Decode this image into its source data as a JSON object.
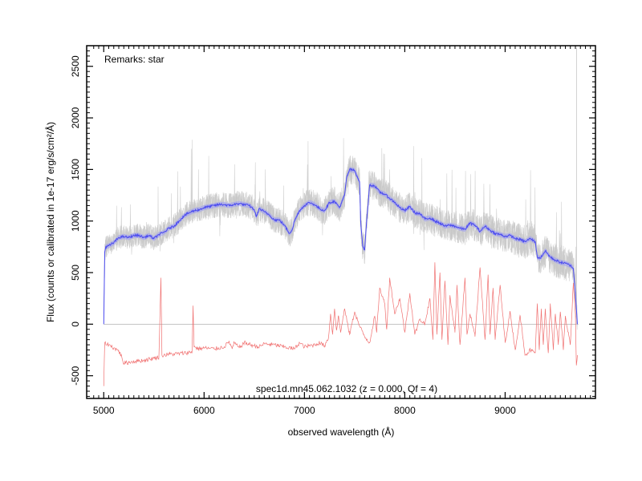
{
  "chart_data": {
    "type": "line",
    "title": "",
    "xlabel": "observed wavelength (Å)",
    "ylabel": "Flux (counts or calibrated in 1e-17 erg/s/cm²/Å)",
    "xlim": [
      4830,
      9900
    ],
    "ylim": [
      -720,
      2700
    ],
    "xticks": [
      5000,
      6000,
      7000,
      8000,
      9000
    ],
    "yticks": [
      -500,
      0,
      500,
      1000,
      1500,
      2000,
      2500
    ],
    "grid": false,
    "legend": "none",
    "annotations": {
      "remarks": "Remarks: star",
      "object_info": "spec1d.mn45.062.1032 (z = 0.000, Qf = 4)"
    },
    "colors": {
      "raw_flux": "#c8c8c8",
      "smoothed_flux": "#4b4bf0",
      "smoothed_band": "#9a9af5",
      "sky": "#f07070",
      "zero_line": "#b0b0b0"
    },
    "series": [
      {
        "role": "smoothed_flux",
        "x": [
          5000,
          5010,
          5020,
          5050,
          5100,
          5150,
          5200,
          5250,
          5300,
          5350,
          5400,
          5450,
          5500,
          5550,
          5600,
          5650,
          5700,
          5750,
          5800,
          5850,
          5900,
          5950,
          6000,
          6050,
          6100,
          6150,
          6200,
          6250,
          6300,
          6350,
          6400,
          6450,
          6500,
          6520,
          6550,
          6600,
          6650,
          6700,
          6750,
          6800,
          6850,
          6880,
          6900,
          6950,
          7000,
          7050,
          7100,
          7150,
          7200,
          7250,
          7300,
          7350,
          7400,
          7420,
          7450,
          7500,
          7550,
          7560,
          7580,
          7600,
          7620,
          7650,
          7700,
          7750,
          7800,
          7850,
          7900,
          7950,
          8000,
          8050,
          8100,
          8150,
          8200,
          8250,
          8300,
          8350,
          8400,
          8450,
          8500,
          8550,
          8600,
          8650,
          8700,
          8750,
          8800,
          8850,
          8900,
          8950,
          9000,
          9050,
          9100,
          9150,
          9200,
          9250,
          9300,
          9320,
          9350,
          9400,
          9450,
          9500,
          9550,
          9600,
          9650,
          9680,
          9700,
          9720
        ],
        "y": [
          0,
          700,
          750,
          760,
          790,
          840,
          850,
          840,
          860,
          860,
          840,
          860,
          830,
          870,
          890,
          930,
          950,
          1000,
          1050,
          1080,
          1100,
          1110,
          1130,
          1140,
          1150,
          1160,
          1160,
          1150,
          1160,
          1170,
          1160,
          1150,
          1110,
          1040,
          1120,
          1090,
          1060,
          1010,
          1010,
          960,
          880,
          920,
          1000,
          1100,
          1150,
          1180,
          1160,
          1120,
          1100,
          1180,
          1190,
          1130,
          1250,
          1420,
          1500,
          1490,
          1380,
          1000,
          760,
          720,
          1000,
          1350,
          1340,
          1280,
          1260,
          1220,
          1180,
          1130,
          1100,
          1140,
          1080,
          1070,
          1020,
          1030,
          1000,
          980,
          950,
          960,
          950,
          930,
          920,
          980,
          960,
          900,
          950,
          910,
          880,
          870,
          850,
          860,
          830,
          820,
          800,
          830,
          800,
          650,
          640,
          710,
          650,
          620,
          600,
          590,
          570,
          540,
          300,
          0
        ]
      },
      {
        "role": "sky",
        "x": [
          5000,
          5010,
          5050,
          5100,
          5150,
          5180,
          5200,
          5250,
          5300,
          5400,
          5500,
          5550,
          5570,
          5580,
          5600,
          5650,
          5700,
          5800,
          5880,
          5890,
          5900,
          5950,
          6000,
          6100,
          6200,
          6250,
          6280,
          6300,
          6350,
          6400,
          6500,
          6550,
          6600,
          6700,
          6800,
          6900,
          6950,
          7000,
          7100,
          7150,
          7200,
          7240,
          7260,
          7280,
          7300,
          7320,
          7340,
          7360,
          7400,
          7450,
          7500,
          7550,
          7600,
          7650,
          7700,
          7720,
          7750,
          7800,
          7820,
          7850,
          7900,
          7950,
          8000,
          8050,
          8100,
          8150,
          8200,
          8250,
          8280,
          8300,
          8320,
          8350,
          8370,
          8400,
          8430,
          8450,
          8500,
          8520,
          8550,
          8600,
          8620,
          8650,
          8700,
          8750,
          8800,
          8830,
          8850,
          8880,
          8900,
          8950,
          9000,
          9050,
          9100,
          9150,
          9200,
          9250,
          9300,
          9320,
          9340,
          9360,
          9380,
          9400,
          9430,
          9450,
          9480,
          9500,
          9530,
          9550,
          9580,
          9600,
          9650,
          9680,
          9700,
          9710,
          9720
        ],
        "y": [
          -600,
          -180,
          -200,
          -230,
          -260,
          -320,
          -380,
          -370,
          -360,
          -350,
          -330,
          -320,
          450,
          -300,
          -300,
          -290,
          -290,
          -280,
          -270,
          180,
          -220,
          -240,
          -230,
          -240,
          -220,
          -170,
          -240,
          -180,
          -230,
          -180,
          -210,
          -220,
          -190,
          -200,
          -220,
          -240,
          -180,
          -220,
          -200,
          -180,
          -210,
          -130,
          100,
          -100,
          150,
          -60,
          80,
          -80,
          150,
          -100,
          120,
          -20,
          -120,
          -180,
          80,
          -80,
          350,
          200,
          -50,
          450,
          100,
          250,
          -80,
          300,
          -100,
          50,
          0,
          250,
          -150,
          600,
          -100,
          500,
          -150,
          420,
          -200,
          280,
          -80,
          380,
          -200,
          450,
          -100,
          100,
          -120,
          550,
          -150,
          480,
          -100,
          350,
          -150,
          380,
          -180,
          120,
          -250,
          80,
          -300,
          -250,
          -280,
          200,
          -250,
          150,
          -200,
          150,
          -280,
          200,
          -250,
          100,
          -200,
          120,
          -250,
          80,
          -200,
          400,
          100,
          -400,
          -300
        ]
      }
    ]
  }
}
